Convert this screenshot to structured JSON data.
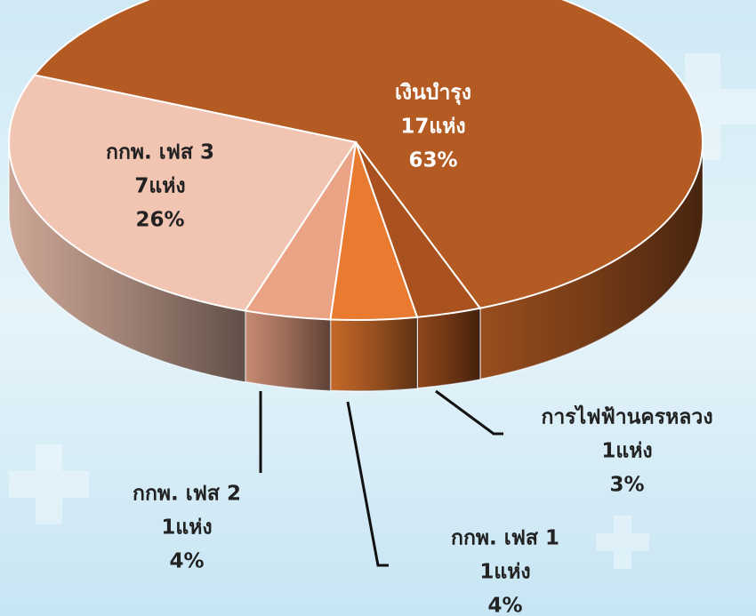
{
  "chart_data": {
    "type": "pie",
    "categories": [
      "เงินบำรุง",
      "การไฟฟ้านครหลวง",
      "กกพ. เฟส 1",
      "กกพ. เฟส 2",
      "กกพ. เฟส 3"
    ],
    "details": [
      "17แห่ง",
      "1แห่ง",
      "1แห่ง",
      "1แห่ง",
      "7แห่ง"
    ],
    "values": [
      63,
      3,
      4,
      4,
      26
    ],
    "value_labels": [
      "63%",
      "3%",
      "4%",
      "4%",
      "26%"
    ],
    "colors": [
      "#b45b23",
      "#a9521f",
      "#e97b30",
      "#eba386",
      "#f2c5b2"
    ]
  }
}
